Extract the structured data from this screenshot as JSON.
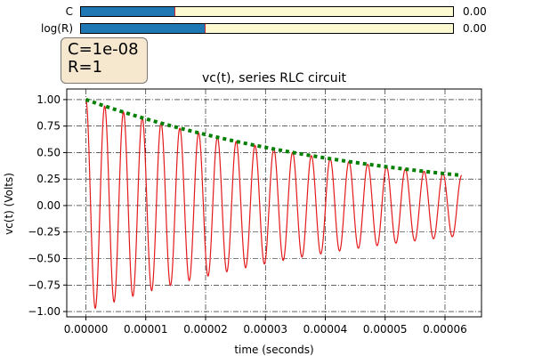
{
  "sliders": [
    {
      "label": "C",
      "value_text": "0.00",
      "fill_fraction": 0.25
    },
    {
      "label": "log(R)",
      "value_text": "0.00",
      "fill_fraction": 0.333
    }
  ],
  "info_box": {
    "line1": "C=1e-08",
    "line2": "R=1"
  },
  "chart_data": {
    "type": "line",
    "title": "vc(t), series RLC circuit",
    "xlabel": "time (seconds)",
    "ylabel": "vc(t) (Volts)",
    "xlim": [
      -3.2e-06,
      6.61e-05
    ],
    "ylim": [
      -1.05,
      1.1
    ],
    "xticks": [
      0,
      1e-05,
      2e-05,
      3e-05,
      4e-05,
      5e-05,
      6e-05
    ],
    "xtick_labels": [
      "0.00000",
      "0.00001",
      "0.00002",
      "0.00003",
      "0.00004",
      "0.00005",
      "0.00006"
    ],
    "yticks": [
      -1.0,
      -0.75,
      -0.5,
      -0.25,
      0.0,
      0.25,
      0.5,
      0.75,
      1.0
    ],
    "ytick_labels": [
      "−1.00",
      "−0.75",
      "−0.50",
      "−0.25",
      "0.00",
      "0.25",
      "0.50",
      "0.75",
      "1.00"
    ],
    "grid": true,
    "series": [
      {
        "style": "solid",
        "color": "#e41a1c",
        "kind": "damped_cosine",
        "t_end": 6.28e-05,
        "period": 3.14e-06,
        "decay_time": 5e-05,
        "amplitude": 1.0
      },
      {
        "style": "dotted",
        "color": "#007f00",
        "kind": "envelope",
        "t_end": 6.28e-05,
        "decay_time": 5e-05,
        "amplitude": 1.0
      }
    ]
  }
}
